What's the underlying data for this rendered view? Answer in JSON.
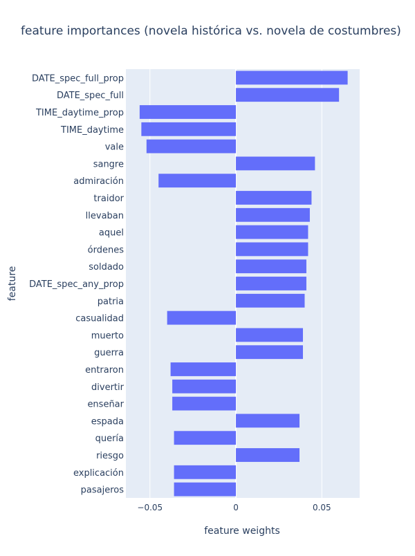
{
  "chart_data": {
    "type": "bar",
    "orientation": "horizontal",
    "title": "feature importances (novela histórica vs. novela de costumbres)",
    "xlabel": "feature weights",
    "ylabel": "feature",
    "xlim": [
      -0.064,
      0.072
    ],
    "xticks": [
      -0.05,
      0,
      0.05
    ],
    "xtick_labels": [
      "−0.05",
      "0",
      "0.05"
    ],
    "grid": true,
    "bar_color": "#636efa",
    "plot_bg": "#e5ecf6",
    "categories": [
      "DATE_spec_full_prop",
      "DATE_spec_full",
      "TIME_daytime_prop",
      "TIME_daytime",
      "vale",
      "sangre",
      "admiración",
      "traidor",
      "llevaban",
      "aquel",
      "órdenes",
      "soldado",
      "DATE_spec_any_prop",
      "patria",
      "casualidad",
      "muerto",
      "guerra",
      "entraron",
      "divertir",
      "enseñar",
      "espada",
      "quería",
      "riesgo",
      "explicación",
      "pasajeros"
    ],
    "values": [
      0.065,
      0.06,
      -0.056,
      -0.055,
      -0.052,
      0.046,
      -0.045,
      0.044,
      0.043,
      0.042,
      0.042,
      0.041,
      0.041,
      0.04,
      -0.04,
      0.039,
      0.039,
      -0.038,
      -0.037,
      -0.037,
      0.037,
      -0.036,
      0.037,
      -0.036,
      -0.036
    ]
  }
}
